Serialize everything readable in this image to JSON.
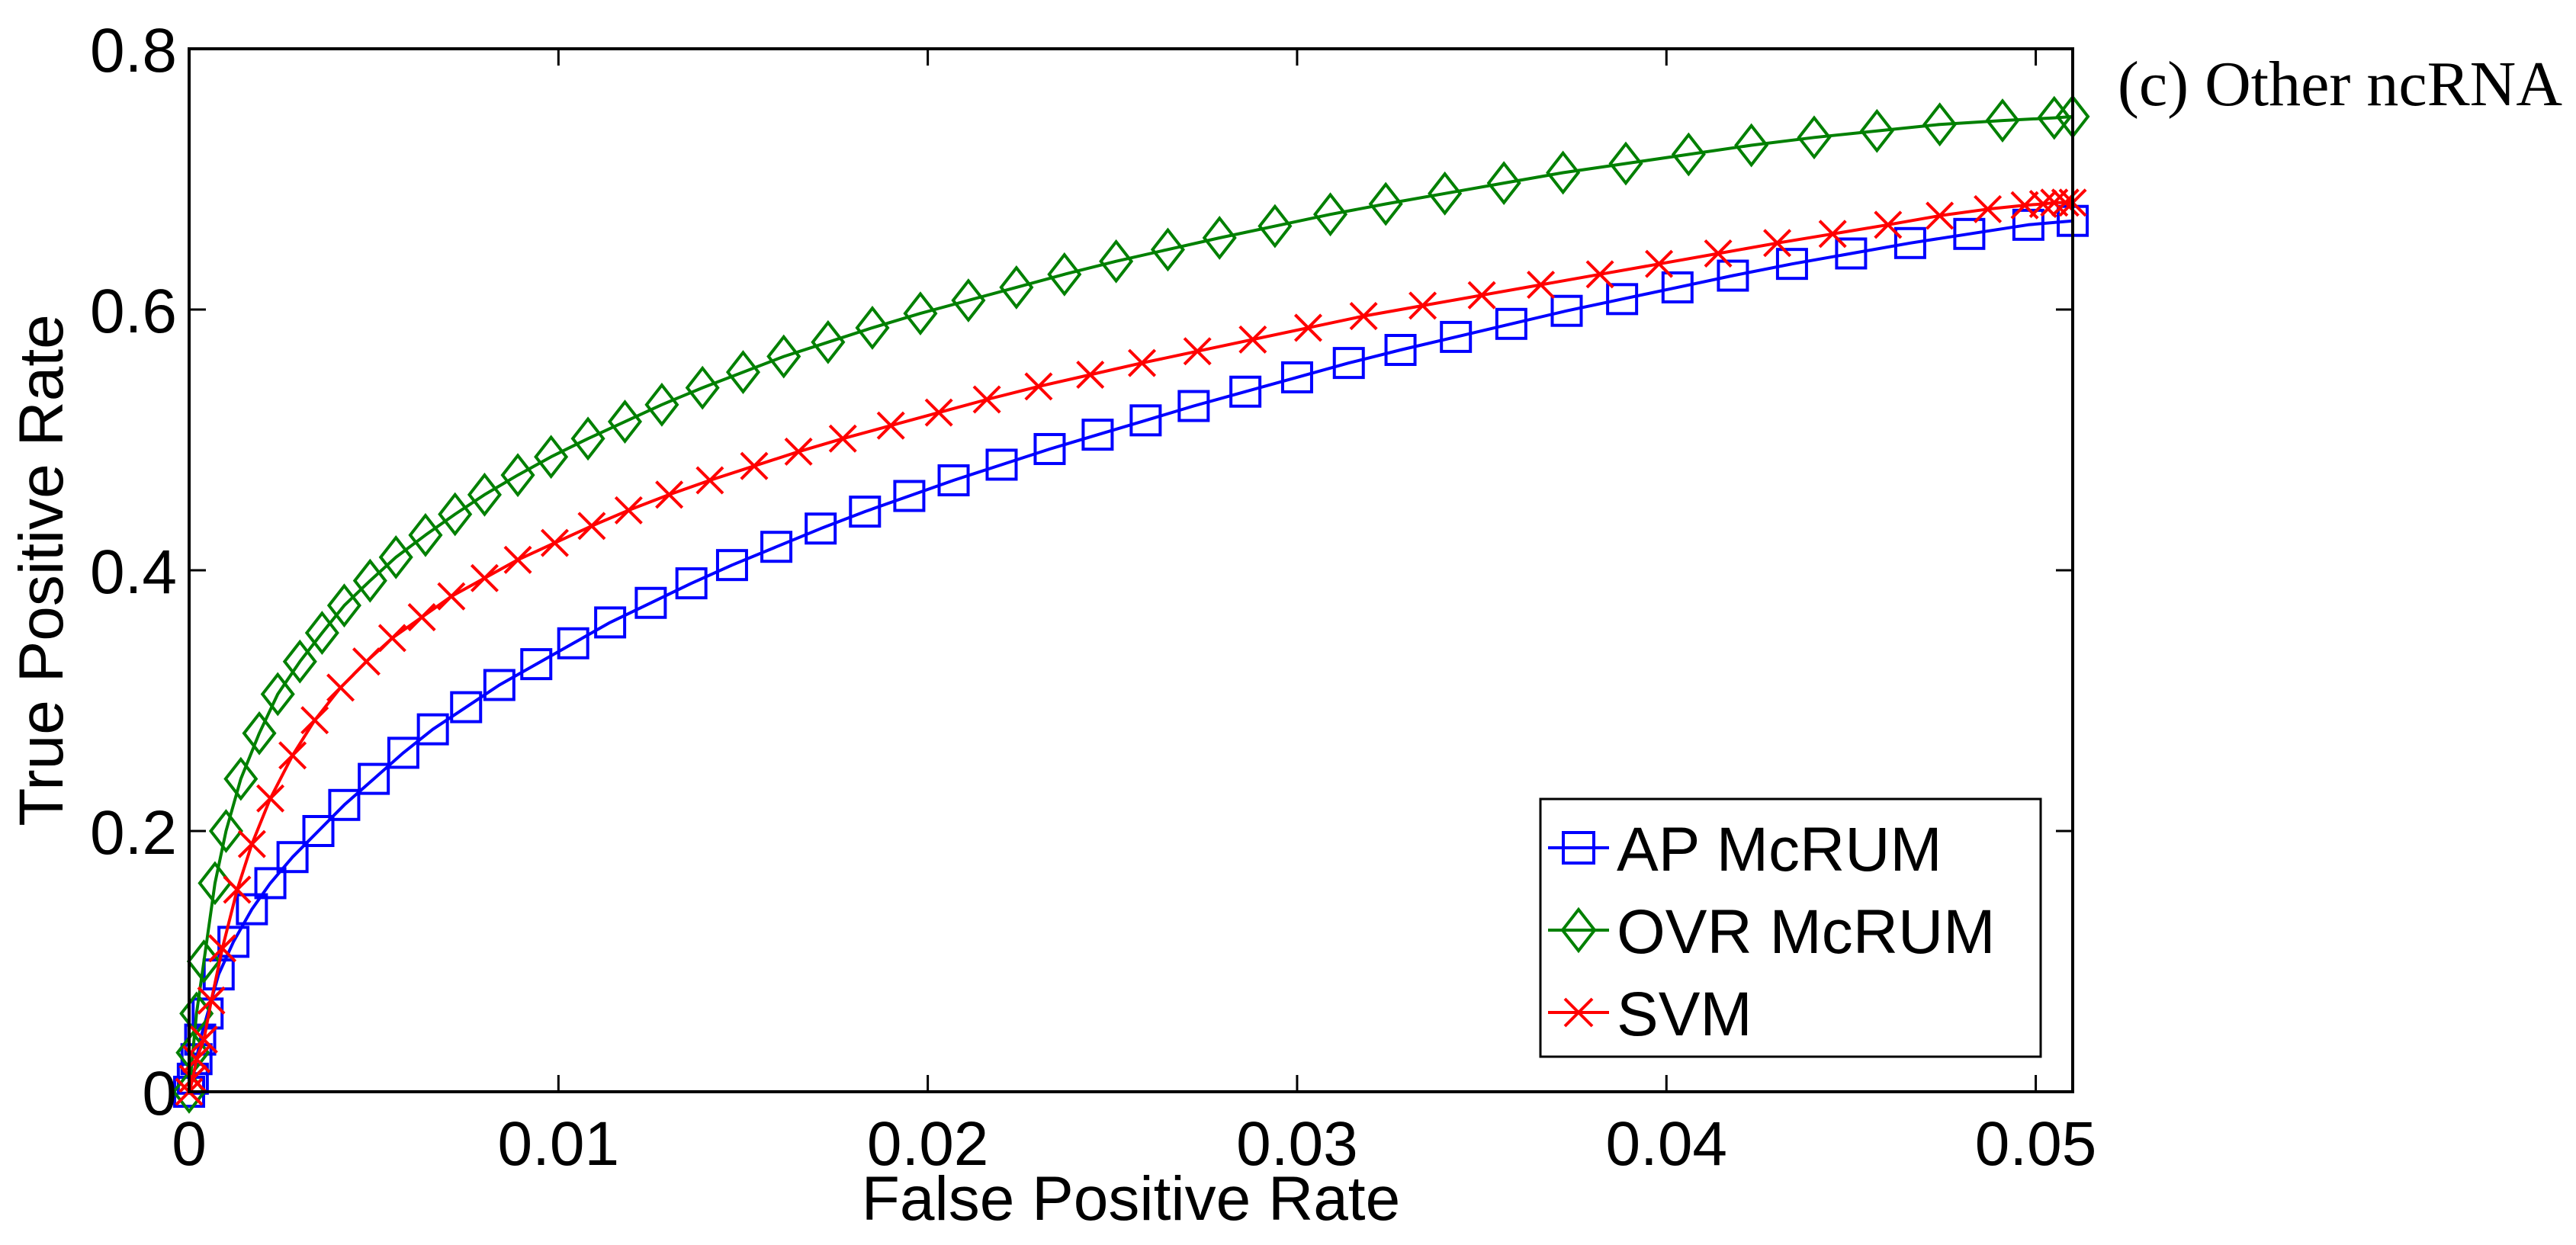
{
  "chart_data": {
    "type": "line",
    "title": "(c) Other ncRNA",
    "xlabel": "False Positive Rate",
    "ylabel": "True Positive Rate",
    "xlim": [
      0,
      0.051
    ],
    "ylim": [
      0,
      0.8
    ],
    "xticks": [
      0,
      0.01,
      0.02,
      0.03,
      0.04,
      0.05
    ],
    "xtick_labels": [
      "0",
      "0.01",
      "0.02",
      "0.03",
      "0.04",
      "0.05"
    ],
    "yticks": [
      0,
      0.2,
      0.4,
      0.6,
      0.8
    ],
    "ytick_labels": [
      "0",
      "0.2",
      "0.4",
      "0.6",
      "0.8"
    ],
    "grid": false,
    "legend_position": "bottom-right",
    "series": [
      {
        "name": "AP McRUM",
        "color": "#0000ff",
        "marker": "square",
        "x": [
          0,
          0.0001,
          0.0002,
          0.0003,
          0.0005,
          0.0008,
          0.0012,
          0.0017,
          0.0022,
          0.0028,
          0.0035,
          0.0042,
          0.005,
          0.0058,
          0.0066,
          0.0075,
          0.0084,
          0.0094,
          0.0104,
          0.0114,
          0.0125,
          0.0136,
          0.0147,
          0.0159,
          0.0171,
          0.0183,
          0.0195,
          0.0207,
          0.022,
          0.0233,
          0.0246,
          0.0259,
          0.0272,
          0.0286,
          0.03,
          0.0314,
          0.0328,
          0.0343,
          0.0358,
          0.0373,
          0.0388,
          0.0403,
          0.0418,
          0.0434,
          0.045,
          0.0466,
          0.0482,
          0.0498,
          0.051
        ],
        "y": [
          0,
          0.01,
          0.025,
          0.04,
          0.06,
          0.09,
          0.115,
          0.14,
          0.16,
          0.18,
          0.2,
          0.22,
          0.24,
          0.26,
          0.278,
          0.295,
          0.312,
          0.328,
          0.344,
          0.36,
          0.375,
          0.39,
          0.404,
          0.418,
          0.432,
          0.445,
          0.457,
          0.469,
          0.481,
          0.493,
          0.504,
          0.515,
          0.526,
          0.537,
          0.548,
          0.559,
          0.569,
          0.579,
          0.589,
          0.599,
          0.608,
          0.617,
          0.626,
          0.635,
          0.643,
          0.651,
          0.658,
          0.665,
          0.668
        ]
      },
      {
        "name": "OVR McRUM",
        "color": "#008000",
        "marker": "diamond",
        "x": [
          0,
          0.0001,
          0.0002,
          0.0004,
          0.0007,
          0.001,
          0.0014,
          0.0019,
          0.0024,
          0.003,
          0.0036,
          0.0042,
          0.0049,
          0.0056,
          0.0064,
          0.0072,
          0.008,
          0.0089,
          0.0098,
          0.0108,
          0.0118,
          0.0128,
          0.0139,
          0.015,
          0.0161,
          0.0173,
          0.0185,
          0.0198,
          0.0211,
          0.0224,
          0.0237,
          0.0251,
          0.0265,
          0.0279,
          0.0294,
          0.0309,
          0.0324,
          0.034,
          0.0356,
          0.0372,
          0.0389,
          0.0406,
          0.0423,
          0.044,
          0.0457,
          0.0474,
          0.0491,
          0.0505,
          0.051
        ],
        "y": [
          0,
          0.03,
          0.06,
          0.1,
          0.16,
          0.2,
          0.24,
          0.275,
          0.305,
          0.33,
          0.352,
          0.373,
          0.392,
          0.41,
          0.427,
          0.443,
          0.458,
          0.473,
          0.487,
          0.501,
          0.514,
          0.527,
          0.54,
          0.552,
          0.564,
          0.575,
          0.586,
          0.597,
          0.607,
          0.617,
          0.627,
          0.637,
          0.646,
          0.655,
          0.664,
          0.673,
          0.681,
          0.689,
          0.697,
          0.705,
          0.712,
          0.719,
          0.726,
          0.732,
          0.737,
          0.742,
          0.745,
          0.747,
          0.748
        ]
      },
      {
        "name": "SVM",
        "color": "#ff0000",
        "marker": "x",
        "x": [
          0,
          0.0001,
          0.0002,
          0.0004,
          0.0006,
          0.0009,
          0.0013,
          0.0017,
          0.0022,
          0.0028,
          0.0034,
          0.0041,
          0.0048,
          0.0055,
          0.0063,
          0.0071,
          0.008,
          0.0089,
          0.0099,
          0.0109,
          0.0119,
          0.013,
          0.0141,
          0.0153,
          0.0165,
          0.0177,
          0.019,
          0.0203,
          0.0216,
          0.023,
          0.0244,
          0.0258,
          0.0273,
          0.0288,
          0.0303,
          0.0318,
          0.0334,
          0.035,
          0.0366,
          0.0382,
          0.0398,
          0.0414,
          0.043,
          0.0445,
          0.046,
          0.0474,
          0.0487,
          0.0497,
          0.0502,
          0.0505,
          0.0508,
          0.051
        ],
        "y": [
          0,
          0.01,
          0.025,
          0.04,
          0.07,
          0.11,
          0.155,
          0.19,
          0.225,
          0.258,
          0.285,
          0.31,
          0.33,
          0.348,
          0.364,
          0.38,
          0.394,
          0.408,
          0.421,
          0.434,
          0.446,
          0.458,
          0.469,
          0.48,
          0.491,
          0.501,
          0.511,
          0.521,
          0.531,
          0.541,
          0.55,
          0.559,
          0.568,
          0.577,
          0.586,
          0.595,
          0.603,
          0.611,
          0.619,
          0.627,
          0.635,
          0.643,
          0.651,
          0.658,
          0.665,
          0.672,
          0.677,
          0.68,
          0.681,
          0.682,
          0.682,
          0.682
        ]
      }
    ]
  }
}
